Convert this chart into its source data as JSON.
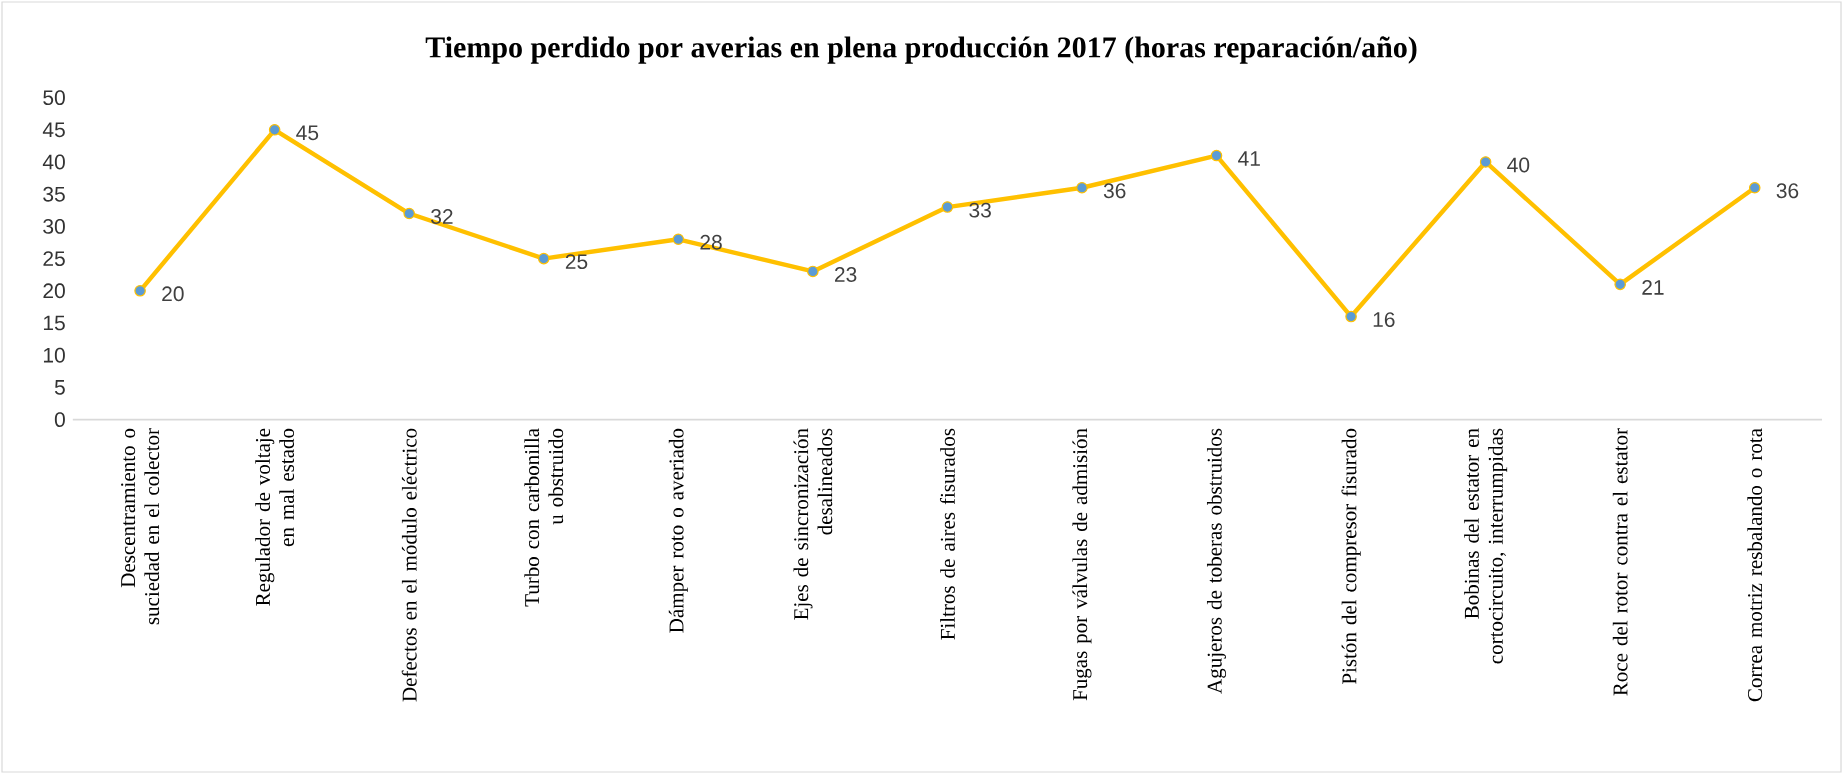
{
  "chart_data": {
    "type": "line",
    "title": "Tiempo perdido por averias en plena producción 2017 (horas reparación/año)",
    "categories": [
      "Descentramiento o suciedad en el colector",
      "Regulador de voltaje en mal estado",
      "Defectos en el módulo eléctrico",
      "Turbo con carbonilla u obstruido",
      "Dámper roto o averiado",
      "Ejes de sincronización desalineados",
      "Filtros de aires fisurados",
      "Fugas por válvulas de admisión",
      "Agujeros de toberas obstruidos",
      "Pistón del compresor fisurado",
      "Bobinas del estator en cortocircuito, interrumpidas",
      "Roce del rotor contra el estator",
      "Correa motriz resbalando o rota"
    ],
    "values": [
      20,
      45,
      32,
      25,
      28,
      23,
      33,
      36,
      41,
      16,
      40,
      21,
      36
    ],
    "color": "#ffc000",
    "marker": "circle",
    "line_style": "solid",
    "data_labels": true,
    "ylim": [
      0,
      50
    ],
    "yticks": [
      0,
      5,
      10,
      15,
      20,
      25,
      30,
      35,
      40,
      45,
      50
    ]
  }
}
